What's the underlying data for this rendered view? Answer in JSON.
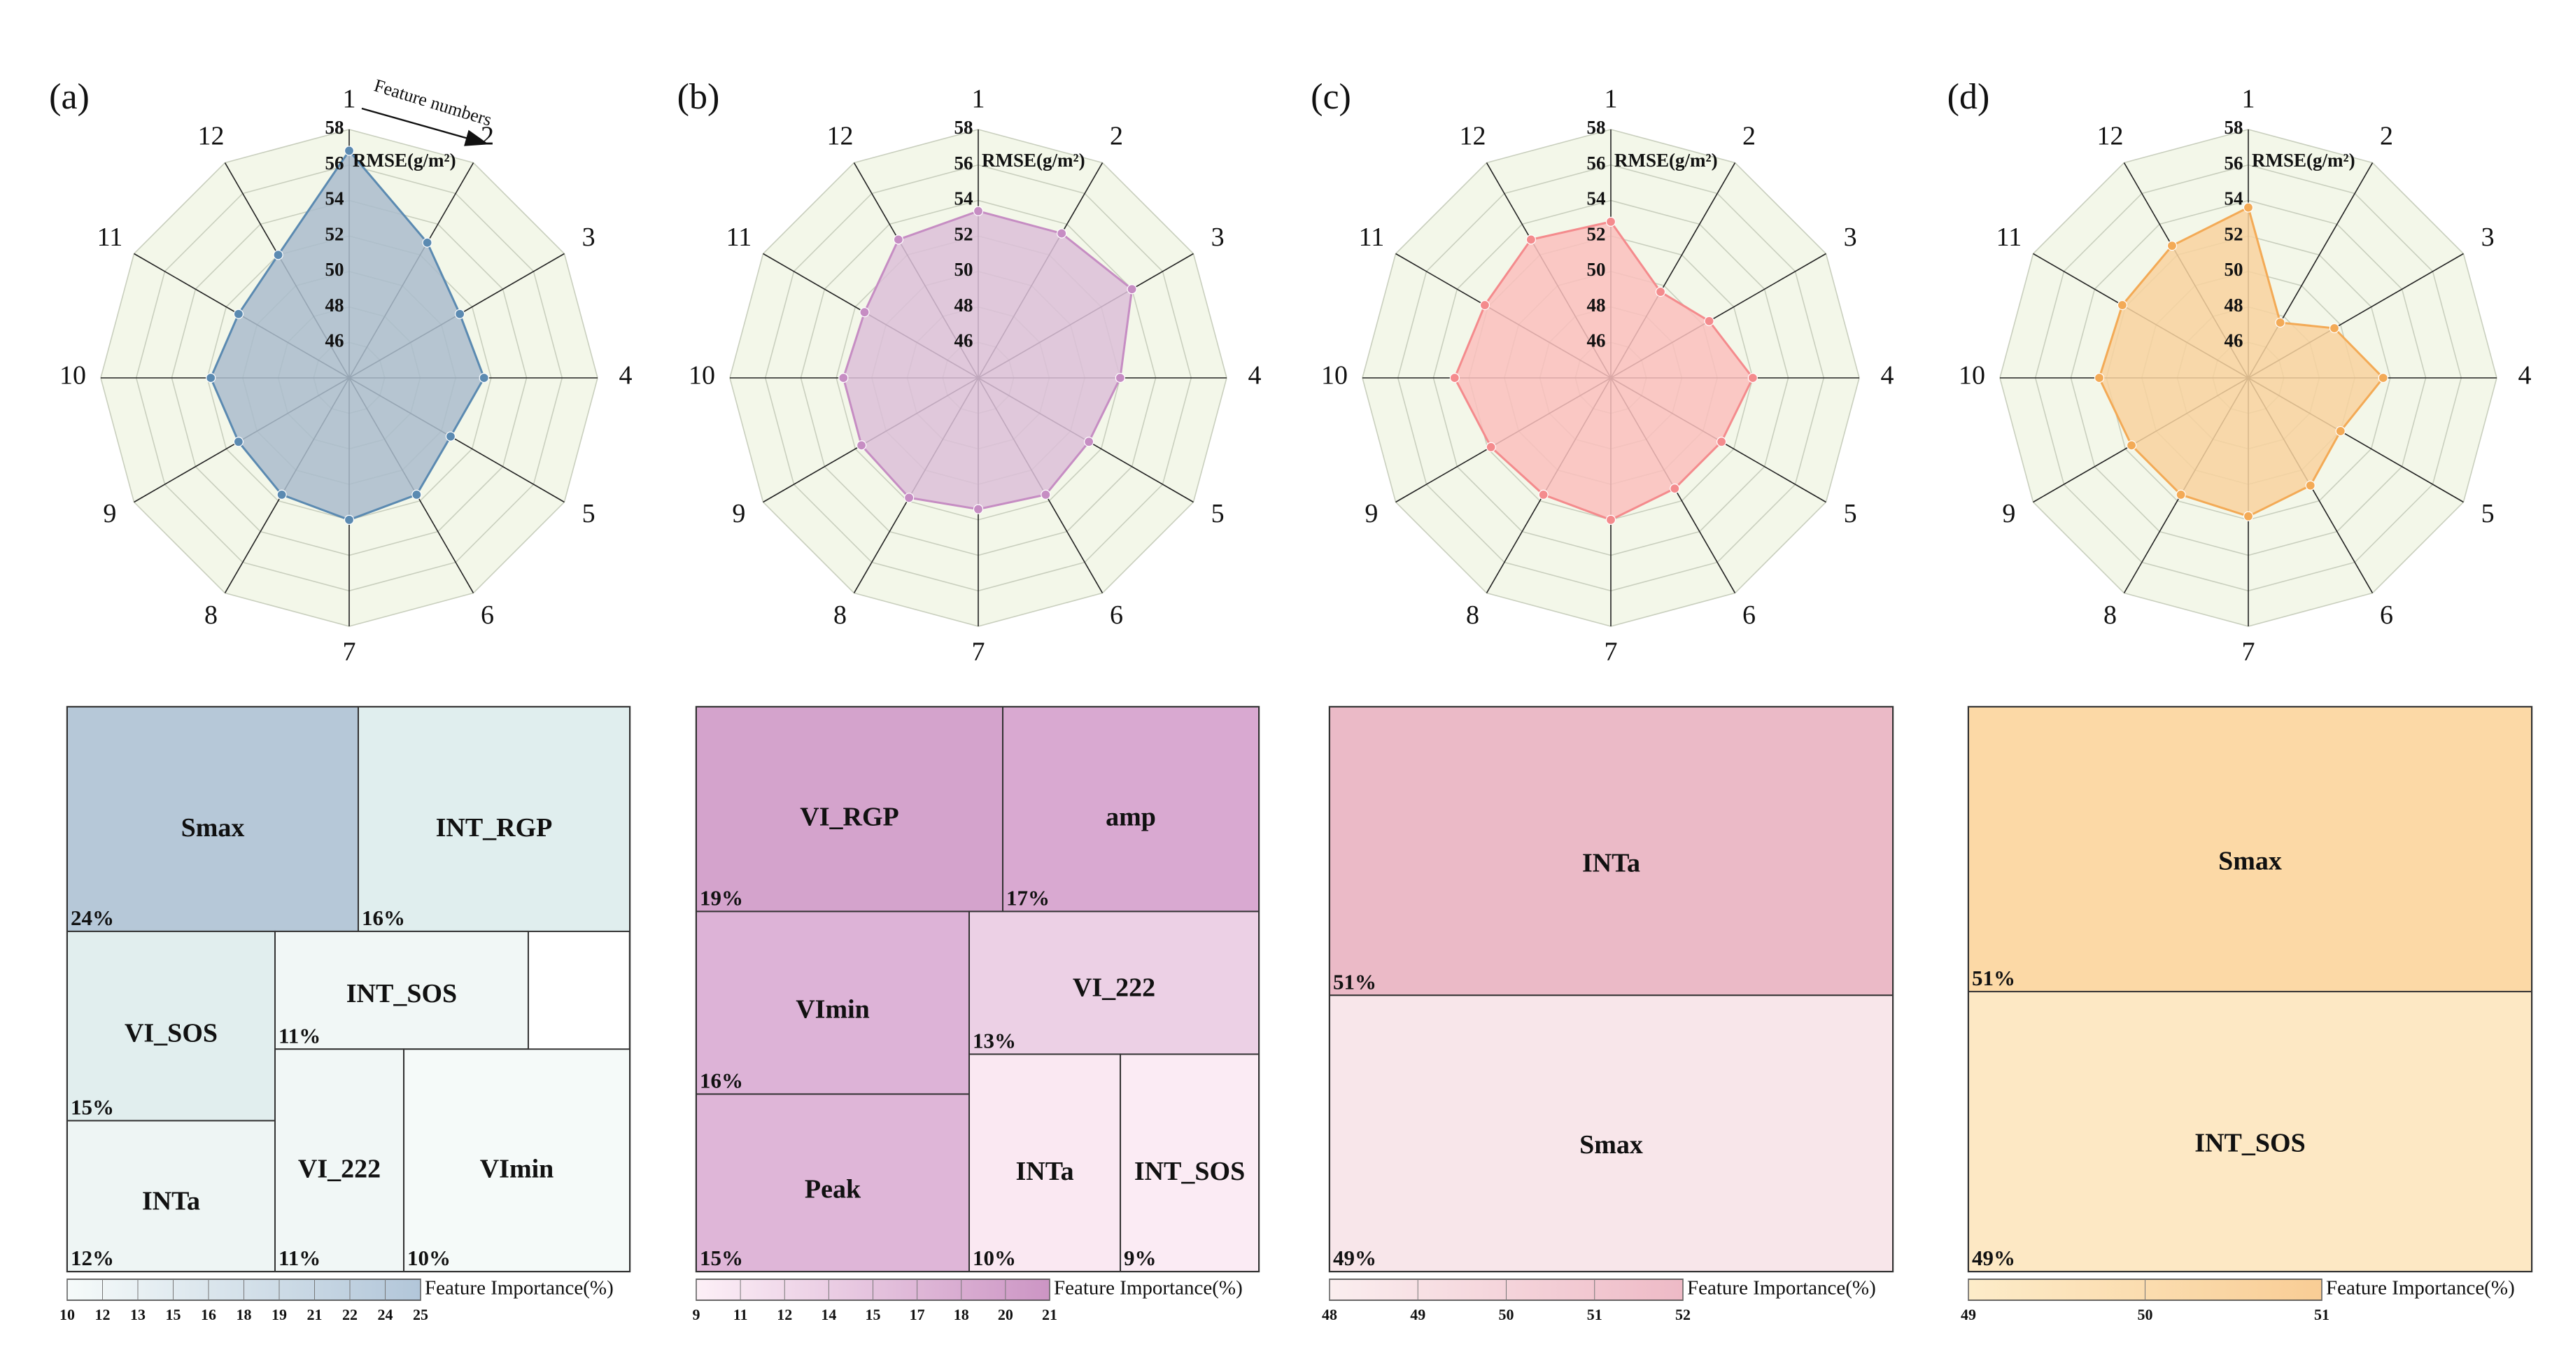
{
  "colors": {
    "grid_bg": "#f3f7e9",
    "grid_line": "#c9cfbe",
    "spoke": "#222222"
  },
  "panels": [
    {
      "label": "(a)",
      "radar": {
        "axis_title": "RMSE(g/m²)",
        "annotation": "Feature numbers",
        "features": [
          "1",
          "2",
          "3",
          "4",
          "5",
          "6",
          "7",
          "8",
          "9",
          "10",
          "11",
          "12"
        ],
        "ticks": [
          "46",
          "48",
          "50",
          "52",
          "54",
          "56",
          "58"
        ],
        "range": [
          44,
          58
        ],
        "values": [
          56.8,
          52.8,
          51.2,
          51.6,
          50.6,
          51.6,
          52.0,
          51.6,
          51.2,
          51.8,
          51.2,
          52.0
        ],
        "stroke": "#5b8ab1",
        "fill": "#aabccd"
      },
      "treemap": {
        "tiles": [
          {
            "name": "Smax",
            "pct": "24%",
            "color": "#b6c8d8"
          },
          {
            "name": "INT_RGP",
            "pct": "16%",
            "color": "#e0eeee"
          },
          {
            "name": "VI_SOS",
            "pct": "15%",
            "color": "#e1eeee"
          },
          {
            "name": "INT_SOS",
            "pct": "11%",
            "color": "#f1f7f6"
          },
          {
            "name": "INTa",
            "pct": "12%",
            "color": "#eef5f4"
          },
          {
            "name": "VI_222",
            "pct": "11%",
            "color": "#f1f7f6"
          },
          {
            "name": "VImin",
            "pct": "10%",
            "color": "#f5faf9"
          }
        ],
        "colorbar": {
          "title": "Feature Importance(%)",
          "ticks": [
            "10",
            "12",
            "13",
            "15",
            "16",
            "18",
            "19",
            "21",
            "22",
            "24",
            "25"
          ],
          "from": "#f6fbfa",
          "to": "#b2c6d9"
        }
      }
    },
    {
      "label": "(b)",
      "radar": {
        "axis_title": "RMSE(g/m²)",
        "features": [
          "1",
          "2",
          "3",
          "4",
          "5",
          "6",
          "7",
          "8",
          "9",
          "10",
          "11",
          "12"
        ],
        "ticks": [
          "46",
          "48",
          "50",
          "52",
          "54",
          "56",
          "58"
        ],
        "range": [
          44,
          58
        ],
        "values": [
          53.4,
          53.4,
          54.0,
          52.0,
          51.2,
          51.6,
          51.4,
          51.8,
          51.6,
          51.6,
          51.4,
          53.0
        ],
        "stroke": "#c68dc3",
        "fill": "#dcc0d8"
      },
      "treemap": {
        "tiles": [
          {
            "name": "VI_RGP",
            "pct": "19%",
            "color": "#d4a3cc"
          },
          {
            "name": "amp",
            "pct": "17%",
            "color": "#d9a9d1"
          },
          {
            "name": "VImin",
            "pct": "16%",
            "color": "#ddb3d7"
          },
          {
            "name": "VI_222",
            "pct": "13%",
            "color": "#ecd0e5"
          },
          {
            "name": "Peak",
            "pct": "15%",
            "color": "#dfb6d8"
          },
          {
            "name": "INTa",
            "pct": "10%",
            "color": "#fae8f2"
          },
          {
            "name": "INT_SOS",
            "pct": "9%",
            "color": "#fbebf4"
          }
        ],
        "colorbar": {
          "title": "Feature Importance(%)",
          "ticks": [
            "9",
            "11",
            "12",
            "14",
            "15",
            "17",
            "18",
            "20",
            "21"
          ],
          "from": "#fdf0f7",
          "to": "#cc95c4"
        }
      }
    },
    {
      "label": "(c)",
      "radar": {
        "axis_title": "RMSE(g/m²)",
        "features": [
          "1",
          "2",
          "3",
          "4",
          "5",
          "6",
          "7",
          "8",
          "9",
          "10",
          "11",
          "12"
        ],
        "ticks": [
          "46",
          "48",
          "50",
          "52",
          "54",
          "56",
          "58"
        ],
        "range": [
          44,
          58
        ],
        "values": [
          52.8,
          49.6,
          50.4,
          52.0,
          51.2,
          51.2,
          52.0,
          51.6,
          51.8,
          52.8,
          52.2,
          53.0
        ],
        "stroke": "#f48b8d",
        "fill": "#fac0bd"
      },
      "treemap": {
        "tiles": [
          {
            "name": "INTa",
            "pct": "51%",
            "color": "#ebbac7"
          },
          {
            "name": "Smax",
            "pct": "49%",
            "color": "#f8e6ea"
          }
        ],
        "colorbar": {
          "title": "Feature Importance(%)",
          "ticks": [
            "48",
            "49",
            "50",
            "51",
            "52"
          ],
          "from": "#fbeeef",
          "to": "#eebac6"
        }
      }
    },
    {
      "label": "(d)",
      "radar": {
        "axis_title": "RMSE(g/m²)",
        "features": [
          "1",
          "2",
          "3",
          "4",
          "5",
          "6",
          "7",
          "8",
          "9",
          "10",
          "11",
          "12"
        ],
        "ticks": [
          "46",
          "48",
          "50",
          "52",
          "54",
          "56",
          "58"
        ],
        "range": [
          44,
          58
        ],
        "values": [
          53.6,
          47.6,
          49.6,
          51.6,
          50.0,
          51.0,
          51.8,
          51.6,
          51.6,
          52.4,
          52.2,
          52.6
        ],
        "stroke": "#f3aa56",
        "fill": "#f8d29f"
      },
      "treemap": {
        "tiles": [
          {
            "name": "Smax",
            "pct": "51%",
            "color": "#fcd9a6"
          },
          {
            "name": "INT_SOS",
            "pct": "49%",
            "color": "#fde8c4"
          }
        ],
        "colorbar": {
          "title": "Feature Importance(%)",
          "ticks": [
            "49",
            "50",
            "51"
          ],
          "from": "#fdecc9",
          "to": "#f9cd95"
        }
      }
    }
  ],
  "chart_data": [
    {
      "type": "radar",
      "title": "(a)",
      "axis_title": "RMSE(g/m²)",
      "categories": [
        "1",
        "2",
        "3",
        "4",
        "5",
        "6",
        "7",
        "8",
        "9",
        "10",
        "11",
        "12"
      ],
      "values": [
        56.8,
        52.8,
        51.2,
        51.6,
        50.6,
        51.6,
        52.0,
        51.6,
        51.2,
        51.8,
        51.2,
        52.0
      ],
      "rlim": [
        44,
        58
      ]
    },
    {
      "type": "treemap",
      "title": "(a) Feature Importance(%)",
      "categories": [
        "Smax",
        "INT_RGP",
        "VI_SOS",
        "INT_SOS",
        "INTa",
        "VI_222",
        "VImin"
      ],
      "values": [
        24,
        16,
        15,
        11,
        12,
        11,
        10
      ]
    },
    {
      "type": "radar",
      "title": "(b)",
      "axis_title": "RMSE(g/m²)",
      "categories": [
        "1",
        "2",
        "3",
        "4",
        "5",
        "6",
        "7",
        "8",
        "9",
        "10",
        "11",
        "12"
      ],
      "values": [
        53.4,
        53.4,
        54.0,
        52.0,
        51.2,
        51.6,
        51.4,
        51.8,
        51.6,
        51.6,
        51.4,
        53.0
      ],
      "rlim": [
        44,
        58
      ]
    },
    {
      "type": "treemap",
      "title": "(b) Feature Importance(%)",
      "categories": [
        "VI_RGP",
        "amp",
        "VImin",
        "VI_222",
        "Peak",
        "INTa",
        "INT_SOS"
      ],
      "values": [
        19,
        17,
        16,
        13,
        15,
        10,
        9
      ]
    },
    {
      "type": "radar",
      "title": "(c)",
      "axis_title": "RMSE(g/m²)",
      "categories": [
        "1",
        "2",
        "3",
        "4",
        "5",
        "6",
        "7",
        "8",
        "9",
        "10",
        "11",
        "12"
      ],
      "values": [
        52.8,
        49.6,
        50.4,
        52.0,
        51.2,
        51.2,
        52.0,
        51.6,
        51.8,
        52.8,
        52.2,
        53.0
      ],
      "rlim": [
        44,
        58
      ]
    },
    {
      "type": "treemap",
      "title": "(c) Feature Importance(%)",
      "categories": [
        "INTa",
        "Smax"
      ],
      "values": [
        51,
        49
      ]
    },
    {
      "type": "radar",
      "title": "(d)",
      "axis_title": "RMSE(g/m²)",
      "categories": [
        "1",
        "2",
        "3",
        "4",
        "5",
        "6",
        "7",
        "8",
        "9",
        "10",
        "11",
        "12"
      ],
      "values": [
        53.6,
        47.6,
        49.6,
        51.6,
        50.0,
        51.0,
        51.8,
        51.6,
        51.6,
        52.4,
        52.2,
        52.6
      ],
      "rlim": [
        44,
        58
      ]
    },
    {
      "type": "treemap",
      "title": "(d) Feature Importance(%)",
      "categories": [
        "Smax",
        "INT_SOS"
      ],
      "values": [
        51,
        49
      ]
    }
  ]
}
